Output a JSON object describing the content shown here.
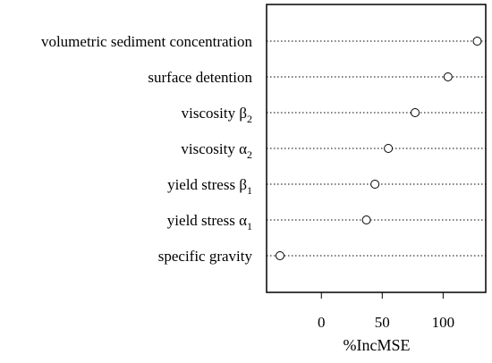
{
  "chart_data": {
    "type": "dot",
    "title": "",
    "xlabel": "%IncMSE",
    "ylabel": "",
    "xlim": [
      -45,
      135
    ],
    "xticks": [
      0,
      50,
      100
    ],
    "grid": "dotted horizontal guide lines per variable",
    "marker": "open circle",
    "variables": [
      {
        "prefix": "volumetric sediment concentration",
        "var": "",
        "sub": "",
        "value": 128
      },
      {
        "prefix": "surface detention",
        "var": "",
        "sub": "",
        "value": 104
      },
      {
        "prefix": "viscosity ",
        "var": "β",
        "sub": "2",
        "value": 77
      },
      {
        "prefix": "viscosity ",
        "var": "α",
        "sub": "2",
        "value": 55
      },
      {
        "prefix": "yield stress ",
        "var": "β",
        "sub": "1",
        "value": 44
      },
      {
        "prefix": "yield stress ",
        "var": "α",
        "sub": "1",
        "value": 37
      },
      {
        "prefix": "specific gravity",
        "var": "",
        "sub": "",
        "value": -34
      }
    ]
  }
}
